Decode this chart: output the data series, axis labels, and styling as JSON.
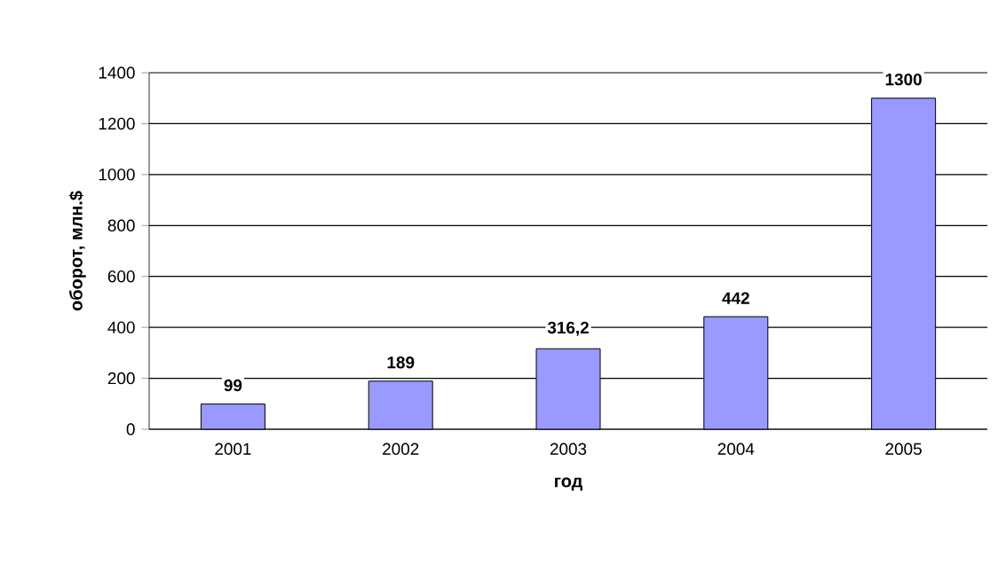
{
  "chart_data": {
    "type": "bar",
    "xlabel": "год",
    "ylabel": "оборот, млн.$",
    "categories": [
      "2001",
      "2002",
      "2003",
      "2004",
      "2005"
    ],
    "values": [
      99,
      189,
      316.2,
      442,
      1300
    ],
    "value_labels": [
      "99",
      "189",
      "316,2",
      "442",
      "1300"
    ],
    "color": "#9999ff",
    "ylim": [
      0,
      1400
    ],
    "yticks": [
      0,
      200,
      400,
      600,
      800,
      1000,
      1200,
      1400
    ],
    "grid": "y"
  }
}
